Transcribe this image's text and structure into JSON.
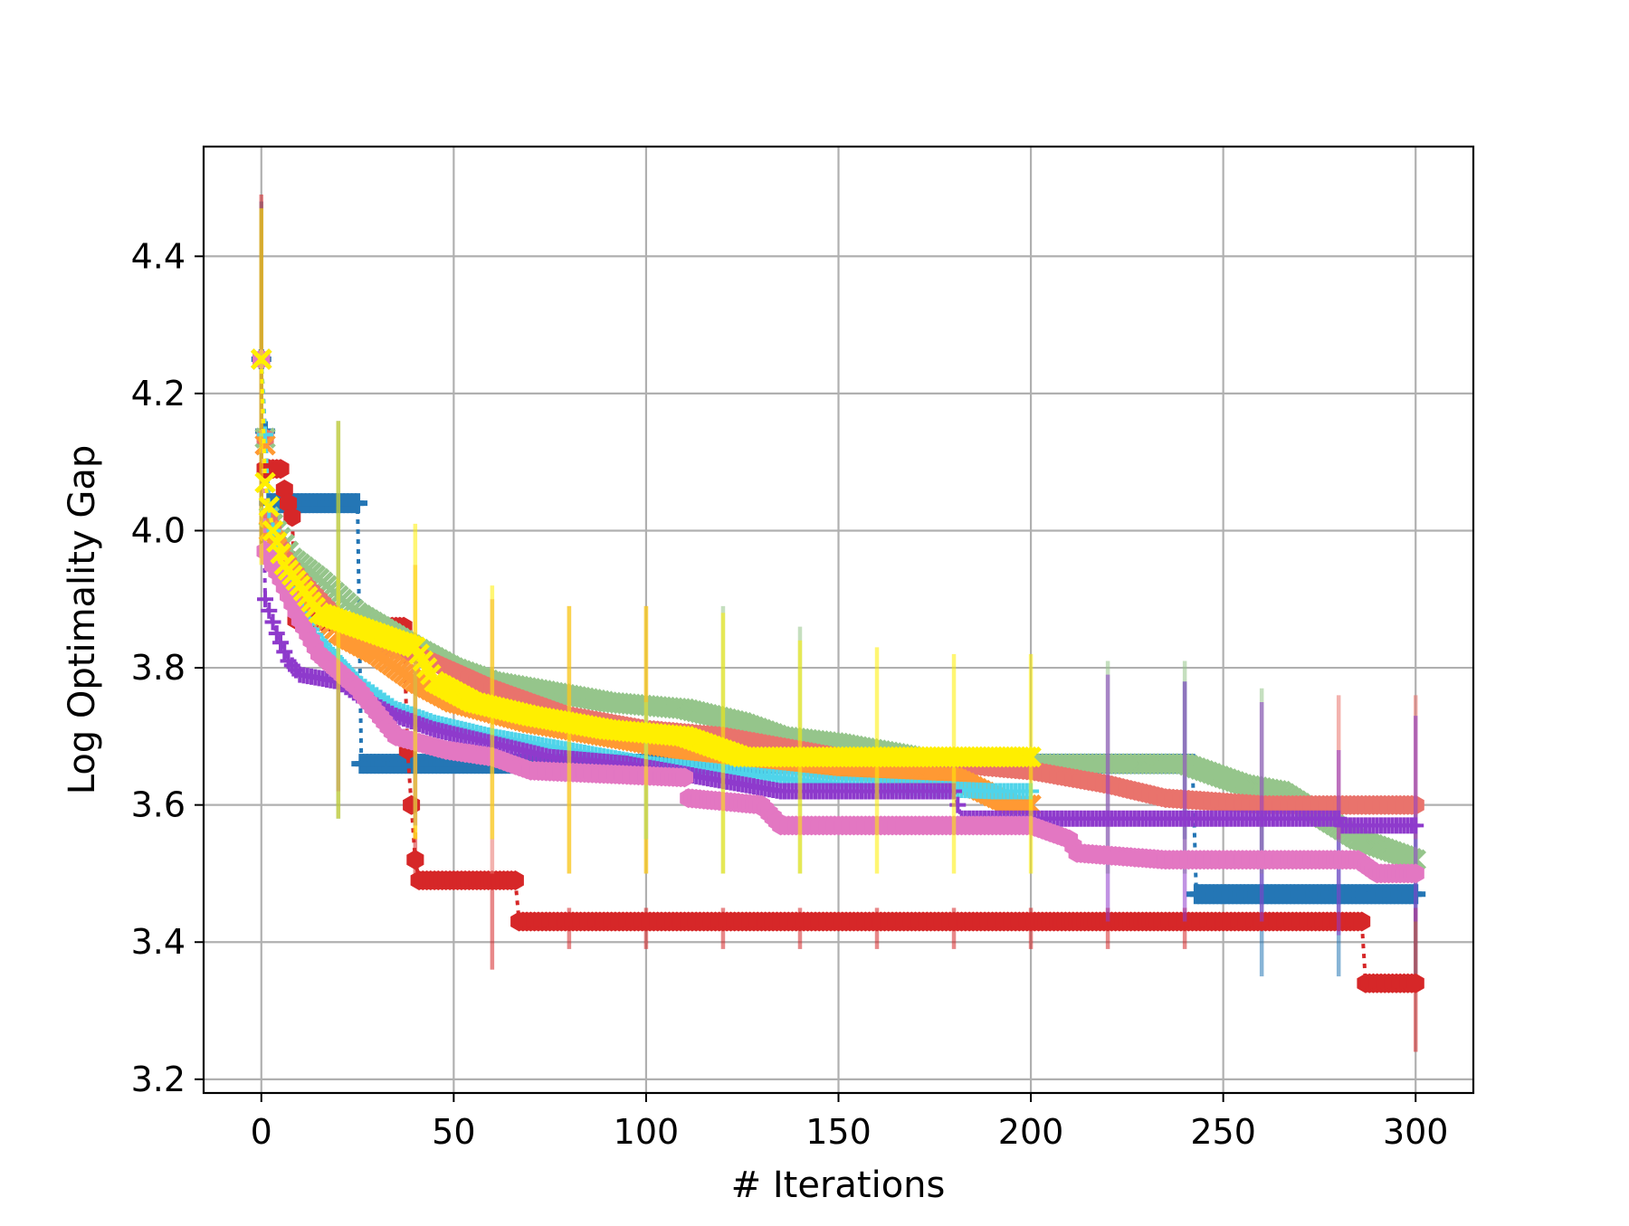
{
  "chart_data": {
    "type": "line",
    "title": "",
    "xlabel": "# Iterations",
    "ylabel": "Log Optimality Gap",
    "xlim": [
      -15,
      315
    ],
    "ylim": [
      3.18,
      4.56
    ],
    "xticks": [
      0,
      50,
      100,
      150,
      200,
      250,
      300
    ],
    "yticks": [
      3.2,
      3.4,
      3.6,
      3.8,
      4.0,
      4.2,
      4.4
    ],
    "xtick_labels": [
      "0",
      "50",
      "100",
      "150",
      "200",
      "250",
      "300"
    ],
    "ytick_labels": [
      "3.2",
      "3.4",
      "3.6",
      "3.8",
      "4.0",
      "4.2",
      "4.4"
    ],
    "grid": true,
    "legend": false,
    "error_bar_x": [
      0,
      20,
      40,
      60,
      80,
      100,
      120,
      140,
      160,
      180,
      200,
      220,
      240,
      260,
      280,
      300
    ],
    "series": [
      {
        "color": "#2476b5",
        "marker": "plus-thick",
        "points": [
          [
            0,
            4.25
          ],
          [
            2,
            4.04
          ],
          [
            25,
            4.04
          ],
          [
            26,
            3.66
          ],
          [
            242,
            3.66
          ],
          [
            243,
            3.47
          ],
          [
            300,
            3.47
          ]
        ],
        "errors": [
          [
            0,
            3.98,
            4.48
          ],
          [
            20,
            3.58,
            4.16
          ],
          [
            240,
            3.55,
            3.78
          ],
          [
            260,
            3.35,
            3.62
          ],
          [
            280,
            3.35,
            3.6
          ],
          [
            300,
            3.35,
            3.6
          ]
        ]
      },
      {
        "color": "#d62728",
        "marker": "hexagon",
        "points": [
          [
            0,
            4.25
          ],
          [
            1,
            4.09
          ],
          [
            5,
            4.09
          ],
          [
            6,
            4.06
          ],
          [
            8,
            4.02
          ],
          [
            9,
            3.87
          ],
          [
            33,
            3.86
          ],
          [
            37,
            3.86
          ],
          [
            38,
            3.68
          ],
          [
            40,
            3.52
          ],
          [
            41,
            3.49
          ],
          [
            66,
            3.49
          ],
          [
            67,
            3.43
          ],
          [
            286,
            3.43
          ],
          [
            287,
            3.34
          ],
          [
            300,
            3.34
          ]
        ],
        "errors": [
          [
            0,
            3.98,
            4.49
          ],
          [
            40,
            3.5,
            3.56
          ],
          [
            60,
            3.36,
            3.49
          ],
          [
            80,
            3.39,
            3.45
          ],
          [
            100,
            3.39,
            3.45
          ],
          [
            120,
            3.39,
            3.45
          ],
          [
            140,
            3.39,
            3.45
          ],
          [
            160,
            3.39,
            3.45
          ],
          [
            180,
            3.39,
            3.45
          ],
          [
            200,
            3.39,
            3.45
          ],
          [
            220,
            3.39,
            3.45
          ],
          [
            240,
            3.39,
            3.45
          ],
          [
            300,
            3.24,
            3.45
          ]
        ]
      },
      {
        "color": "#95c58b",
        "marker": "x",
        "points": [
          [
            0,
            4.25
          ],
          [
            2,
            4.02
          ],
          [
            8,
            3.96
          ],
          [
            15,
            3.93
          ],
          [
            25,
            3.88
          ],
          [
            40,
            3.83
          ],
          [
            50,
            3.8
          ],
          [
            60,
            3.78
          ],
          [
            70,
            3.77
          ],
          [
            90,
            3.75
          ],
          [
            110,
            3.74
          ],
          [
            125,
            3.72
          ],
          [
            135,
            3.7
          ],
          [
            150,
            3.69
          ],
          [
            170,
            3.67
          ],
          [
            200,
            3.66
          ],
          [
            240,
            3.66
          ],
          [
            245,
            3.65
          ],
          [
            255,
            3.63
          ],
          [
            265,
            3.62
          ],
          [
            285,
            3.55
          ],
          [
            300,
            3.52
          ]
        ],
        "errors": [
          [
            120,
            3.5,
            3.89
          ],
          [
            140,
            3.5,
            3.86
          ],
          [
            220,
            3.5,
            3.81
          ],
          [
            240,
            3.5,
            3.81
          ],
          [
            260,
            3.5,
            3.77
          ]
        ]
      },
      {
        "color": "#e9736c",
        "marker": "hexagon",
        "points": [
          [
            0,
            4.25
          ],
          [
            2,
            4.02
          ],
          [
            6,
            3.96
          ],
          [
            10,
            3.93
          ],
          [
            15,
            3.9
          ],
          [
            25,
            3.84
          ],
          [
            40,
            3.82
          ],
          [
            60,
            3.77
          ],
          [
            80,
            3.73
          ],
          [
            100,
            3.71
          ],
          [
            120,
            3.7
          ],
          [
            150,
            3.67
          ],
          [
            180,
            3.66
          ],
          [
            200,
            3.65
          ],
          [
            220,
            3.63
          ],
          [
            235,
            3.61
          ],
          [
            260,
            3.6
          ],
          [
            300,
            3.6
          ]
        ],
        "errors": [
          [
            60,
            3.5,
            3.9
          ],
          [
            80,
            3.5,
            3.89
          ],
          [
            100,
            3.5,
            3.89
          ],
          [
            280,
            3.55,
            3.76
          ],
          [
            300,
            3.55,
            3.76
          ]
        ]
      },
      {
        "color": "#ff9933",
        "marker": "x",
        "points": [
          [
            0,
            4.25
          ],
          [
            2,
            4.0
          ],
          [
            6,
            3.95
          ],
          [
            10,
            3.91
          ],
          [
            20,
            3.85
          ],
          [
            30,
            3.82
          ],
          [
            40,
            3.78
          ],
          [
            50,
            3.75
          ],
          [
            70,
            3.72
          ],
          [
            90,
            3.7
          ],
          [
            110,
            3.68
          ],
          [
            150,
            3.65
          ],
          [
            180,
            3.64
          ],
          [
            195,
            3.6
          ],
          [
            200,
            3.6
          ]
        ],
        "errors": [
          [
            40,
            3.55,
            3.95
          ]
        ]
      },
      {
        "color": "#4fd4ea",
        "marker": "plus",
        "points": [
          [
            0,
            4.25
          ],
          [
            2,
            4.03
          ],
          [
            5,
            3.94
          ],
          [
            10,
            3.88
          ],
          [
            15,
            3.84
          ],
          [
            25,
            3.78
          ],
          [
            35,
            3.74
          ],
          [
            45,
            3.72
          ],
          [
            60,
            3.7
          ],
          [
            80,
            3.68
          ],
          [
            100,
            3.66
          ],
          [
            150,
            3.63
          ],
          [
            190,
            3.62
          ],
          [
            200,
            3.62
          ]
        ],
        "errors": [
          [
            100,
            3.55,
            3.75
          ]
        ]
      },
      {
        "color": "#8e3acc",
        "marker": "plus",
        "points": [
          [
            0,
            4.25
          ],
          [
            1,
            3.9
          ],
          [
            4,
            3.85
          ],
          [
            7,
            3.81
          ],
          [
            10,
            3.79
          ],
          [
            20,
            3.78
          ],
          [
            25,
            3.76
          ],
          [
            35,
            3.73
          ],
          [
            45,
            3.71
          ],
          [
            60,
            3.69
          ],
          [
            75,
            3.67
          ],
          [
            95,
            3.66
          ],
          [
            115,
            3.64
          ],
          [
            135,
            3.62
          ],
          [
            180,
            3.62
          ],
          [
            182,
            3.58
          ],
          [
            280,
            3.58
          ],
          [
            281,
            3.57
          ],
          [
            300,
            3.57
          ]
        ],
        "errors": [
          [
            20,
            3.62,
            3.79
          ],
          [
            40,
            3.57,
            3.84
          ],
          [
            220,
            3.43,
            3.79
          ],
          [
            240,
            3.43,
            3.78
          ],
          [
            260,
            3.43,
            3.75
          ],
          [
            280,
            3.41,
            3.68
          ],
          [
            300,
            3.43,
            3.73
          ]
        ]
      },
      {
        "color": "#e377c2",
        "marker": "hexagon",
        "points": [
          [
            0,
            4.25
          ],
          [
            1,
            3.97
          ],
          [
            5,
            3.93
          ],
          [
            10,
            3.87
          ],
          [
            15,
            3.82
          ],
          [
            25,
            3.77
          ],
          [
            35,
            3.7
          ],
          [
            48,
            3.68
          ],
          [
            60,
            3.67
          ],
          [
            70,
            3.65
          ],
          [
            110,
            3.64
          ],
          [
            111,
            3.61
          ],
          [
            130,
            3.6
          ],
          [
            135,
            3.57
          ],
          [
            200,
            3.57
          ],
          [
            210,
            3.55
          ],
          [
            212,
            3.53
          ],
          [
            235,
            3.52
          ],
          [
            285,
            3.52
          ],
          [
            290,
            3.5
          ],
          [
            300,
            3.5
          ]
        ],
        "errors": []
      },
      {
        "color": "#ffef00",
        "marker": "x",
        "points": [
          [
            0,
            4.25
          ],
          [
            1,
            4.07
          ],
          [
            3,
            4.0
          ],
          [
            6,
            3.95
          ],
          [
            10,
            3.92
          ],
          [
            15,
            3.88
          ],
          [
            25,
            3.86
          ],
          [
            35,
            3.84
          ],
          [
            40,
            3.83
          ],
          [
            45,
            3.78
          ],
          [
            55,
            3.75
          ],
          [
            70,
            3.73
          ],
          [
            90,
            3.71
          ],
          [
            110,
            3.7
          ],
          [
            125,
            3.67
          ],
          [
            140,
            3.67
          ],
          [
            165,
            3.67
          ],
          [
            200,
            3.67
          ]
        ],
        "errors": [
          [
            0,
            3.95,
            4.47
          ],
          [
            20,
            3.58,
            4.16
          ],
          [
            40,
            3.55,
            4.01
          ],
          [
            60,
            3.55,
            3.92
          ],
          [
            80,
            3.5,
            3.89
          ],
          [
            100,
            3.5,
            3.89
          ],
          [
            120,
            3.5,
            3.88
          ],
          [
            140,
            3.5,
            3.84
          ],
          [
            160,
            3.5,
            3.83
          ],
          [
            180,
            3.5,
            3.82
          ],
          [
            200,
            3.5,
            3.82
          ]
        ]
      }
    ]
  }
}
